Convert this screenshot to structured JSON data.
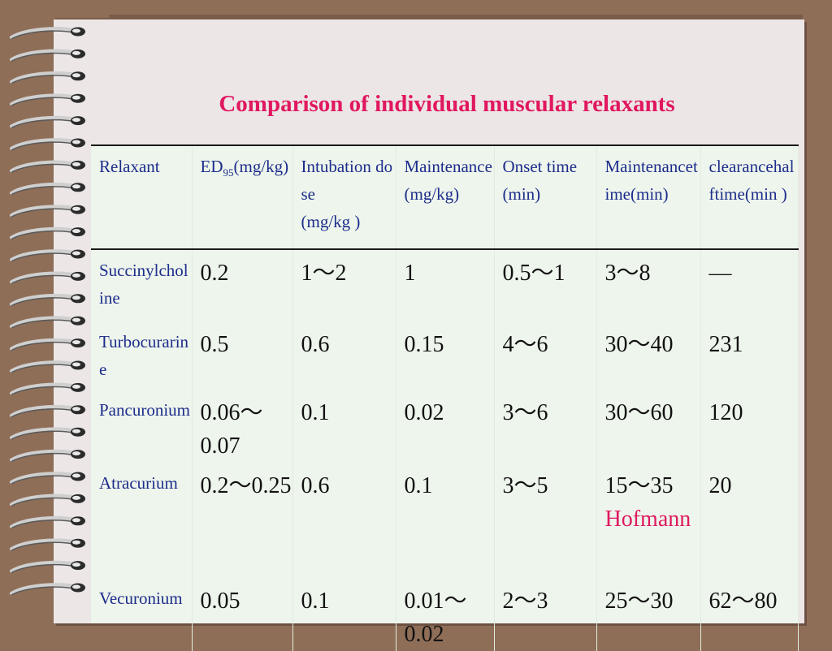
{
  "title": "Comparison of individual muscular relaxants",
  "colors": {
    "title": "#e0185f",
    "header_text": "#1c2d8c",
    "table_bg": "#eef5ec",
    "paper": "#ece6e6",
    "frame": "#8f6e58"
  },
  "headers": {
    "relaxant": "Relaxant",
    "ed_prefix": "ED",
    "ed_sub": "95",
    "ed_suffix": "(mg/kg)",
    "intubation": "Intubation dose",
    "intubation_unit": "(mg/kg )",
    "maintenance": "Maintenance",
    "maintenance_unit": "(mg/kg)",
    "onset": "Onset time",
    "onset_unit": "(min)",
    "maint_time": "Maintenancetime(min)",
    "clearance": "clearancehalftime(min )"
  },
  "rows": [
    {
      "name": "Succinylcholine",
      "ed": "0.2",
      "intubation": "1～2",
      "maintenance": "1",
      "onset": "0.5～1",
      "maint_time": "3～8",
      "note": "",
      "clearance": "—"
    },
    {
      "name": "Turbocurarine",
      "ed": "0.5",
      "intubation": "0.6",
      "maintenance": "0.15",
      "onset": "4～6",
      "maint_time": "30～40",
      "note": "",
      "clearance": "231"
    },
    {
      "name": "Pancuronium",
      "ed": "0.06～0.07",
      "intubation": "0.1",
      "maintenance": "0.02",
      "onset": "3～6",
      "maint_time": "30～60",
      "note": "",
      "clearance": "120"
    },
    {
      "name": "Atracurium",
      "ed": "0.2～0.25",
      "intubation": "0.6",
      "maintenance": "0.1",
      "onset": "3～5",
      "maint_time": "15～35",
      "note": "Hofmann",
      "clearance": "20"
    },
    {
      "name": "Vecuronium",
      "ed": "0.05",
      "intubation": "0.1",
      "maintenance": "0.01～0.02",
      "onset": "2～3",
      "maint_time": "25～30",
      "note": "",
      "clearance": "62～80"
    }
  ]
}
